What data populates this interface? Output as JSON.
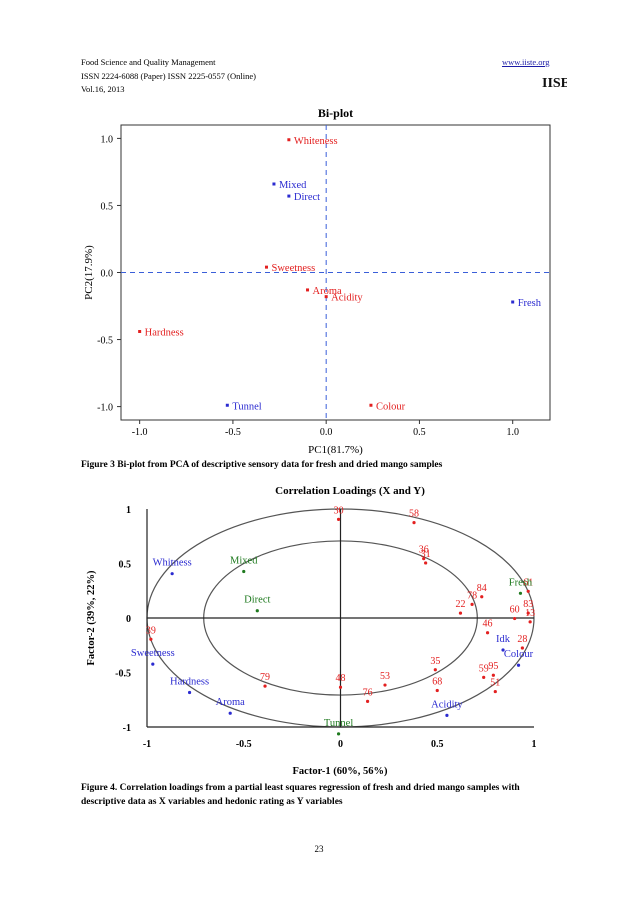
{
  "header": {
    "journal": "Food Science and Quality Management",
    "issn": "ISSN 2224-6088 (Paper) ISSN 2225-0557 (Online)",
    "volume": "Vol.16, 2013",
    "website": "www.iiste.org",
    "logo_text": "IISE"
  },
  "figure3": {
    "caption": "Figure 3 Bi-plot from PCA of descriptive sensory data for fresh and dried mango samples"
  },
  "figure4": {
    "caption": "Figure 4. Correlation loadings from a partial least squares regression of fresh and dried mango samples with descriptive data as X variables and hedonic rating as Y variables"
  },
  "page_number": "23",
  "colors": {
    "red": "#e32020",
    "blue": "#2b2bd0",
    "green": "#1f7a1f",
    "dash_blue": "#3a5fd9"
  },
  "chart_data": [
    {
      "type": "scatter",
      "title": "Bi-plot",
      "xlabel": "PC1(81.7%)",
      "ylabel": "PC2(17.9%)",
      "xlim": [
        -1.1,
        1.2
      ],
      "ylim": [
        -1.1,
        1.1
      ],
      "xticks": [
        -1.0,
        -0.5,
        0.0,
        0.5,
        1.0
      ],
      "xtick_labels": [
        "-1.0",
        "-0.5",
        "0.0",
        "0.5",
        "1.0"
      ],
      "yticks": [
        -1.0,
        -0.5,
        0.0,
        0.5,
        1.0
      ],
      "ytick_labels": [
        "-1.0",
        "-0.5",
        "0.0",
        "0.5",
        "1.0"
      ],
      "points": [
        {
          "label": "Whiteness",
          "x": -0.2,
          "y": 0.99,
          "color": "red"
        },
        {
          "label": "Mixed",
          "x": -0.28,
          "y": 0.66,
          "color": "blue"
        },
        {
          "label": "Direct",
          "x": -0.2,
          "y": 0.57,
          "color": "blue"
        },
        {
          "label": "Sweetness",
          "x": -0.32,
          "y": 0.04,
          "color": "red"
        },
        {
          "label": "Aroma",
          "x": -0.1,
          "y": -0.13,
          "color": "red"
        },
        {
          "label": "Acidity",
          "x": 0.0,
          "y": -0.18,
          "color": "red"
        },
        {
          "label": "Fresh",
          "x": 1.0,
          "y": -0.22,
          "color": "blue"
        },
        {
          "label": "Hardness",
          "x": -1.0,
          "y": -0.44,
          "color": "red"
        },
        {
          "label": "Tunnel",
          "x": -0.53,
          "y": -0.99,
          "color": "blue"
        },
        {
          "label": "Colour",
          "x": 0.24,
          "y": -0.99,
          "color": "red"
        }
      ]
    },
    {
      "type": "scatter",
      "title": "Correlation Loadings (X and Y)",
      "xlabel": "Factor-1 (60%, 56%)",
      "ylabel": "Factor-2 (39%, 22%)",
      "xlim": [
        -1,
        1
      ],
      "ylim": [
        -1,
        1
      ],
      "xticks": [
        -1,
        -0.5,
        0,
        0.5,
        1
      ],
      "xtick_labels": [
        "-1",
        "-0.5",
        "0",
        "0.5",
        "1"
      ],
      "yticks": [
        1,
        0.5,
        0,
        -0.5,
        -1
      ],
      "ytick_labels": [
        "1",
        "0.5",
        "0",
        "-0.5",
        "-1"
      ],
      "ellipses": [
        1.0,
        0.707
      ],
      "variables": [
        {
          "label": "Whitness",
          "x": -0.87,
          "y": 0.48,
          "color": "blue"
        },
        {
          "label": "Mixed",
          "x": -0.5,
          "y": 0.5,
          "color": "green"
        },
        {
          "label": "Direct",
          "x": -0.43,
          "y": 0.14,
          "color": "green"
        },
        {
          "label": "Sweetness",
          "x": -0.97,
          "y": -0.35,
          "color": "blue"
        },
        {
          "label": "Hardness",
          "x": -0.78,
          "y": -0.61,
          "color": "blue"
        },
        {
          "label": "Aroma",
          "x": -0.57,
          "y": -0.8,
          "color": "blue"
        },
        {
          "label": "Tunnel",
          "x": -0.01,
          "y": -0.99,
          "color": "green"
        },
        {
          "label": "Acidity",
          "x": 0.55,
          "y": -0.82,
          "color": "blue"
        },
        {
          "label": "Fresh",
          "x": 0.93,
          "y": 0.3,
          "color": "green"
        },
        {
          "label": "Colour",
          "x": 0.92,
          "y": -0.36,
          "color": "blue"
        },
        {
          "label": "Idk",
          "x": 0.84,
          "y": -0.22,
          "color": "blue"
        }
      ],
      "consumers": [
        {
          "label": "30",
          "x": -0.01,
          "y": 0.96
        },
        {
          "label": "58",
          "x": 0.38,
          "y": 0.93
        },
        {
          "label": "36",
          "x": 0.43,
          "y": 0.6
        },
        {
          "label": "31",
          "x": 0.44,
          "y": 0.56
        },
        {
          "label": "84",
          "x": 0.73,
          "y": 0.25
        },
        {
          "label": "78",
          "x": 0.68,
          "y": 0.18
        },
        {
          "label": "22",
          "x": 0.62,
          "y": 0.1
        },
        {
          "label": "61",
          "x": 0.97,
          "y": 0.3
        },
        {
          "label": "83",
          "x": 0.97,
          "y": 0.1
        },
        {
          "label": "60",
          "x": 0.9,
          "y": 0.05
        },
        {
          "label": "13",
          "x": 0.98,
          "y": 0.02
        },
        {
          "label": "46",
          "x": 0.76,
          "y": -0.08
        },
        {
          "label": "28",
          "x": 0.94,
          "y": -0.22
        },
        {
          "label": "39",
          "x": -0.98,
          "y": -0.14
        },
        {
          "label": "79",
          "x": -0.39,
          "y": -0.57
        },
        {
          "label": "48",
          "x": 0.0,
          "y": -0.58
        },
        {
          "label": "53",
          "x": 0.23,
          "y": -0.56
        },
        {
          "label": "76",
          "x": 0.14,
          "y": -0.71
        },
        {
          "label": "35",
          "x": 0.49,
          "y": -0.42
        },
        {
          "label": "68",
          "x": 0.5,
          "y": -0.61
        },
        {
          "label": "59",
          "x": 0.74,
          "y": -0.49
        },
        {
          "label": "95",
          "x": 0.79,
          "y": -0.47
        },
        {
          "label": "51",
          "x": 0.8,
          "y": -0.62
        }
      ]
    }
  ]
}
